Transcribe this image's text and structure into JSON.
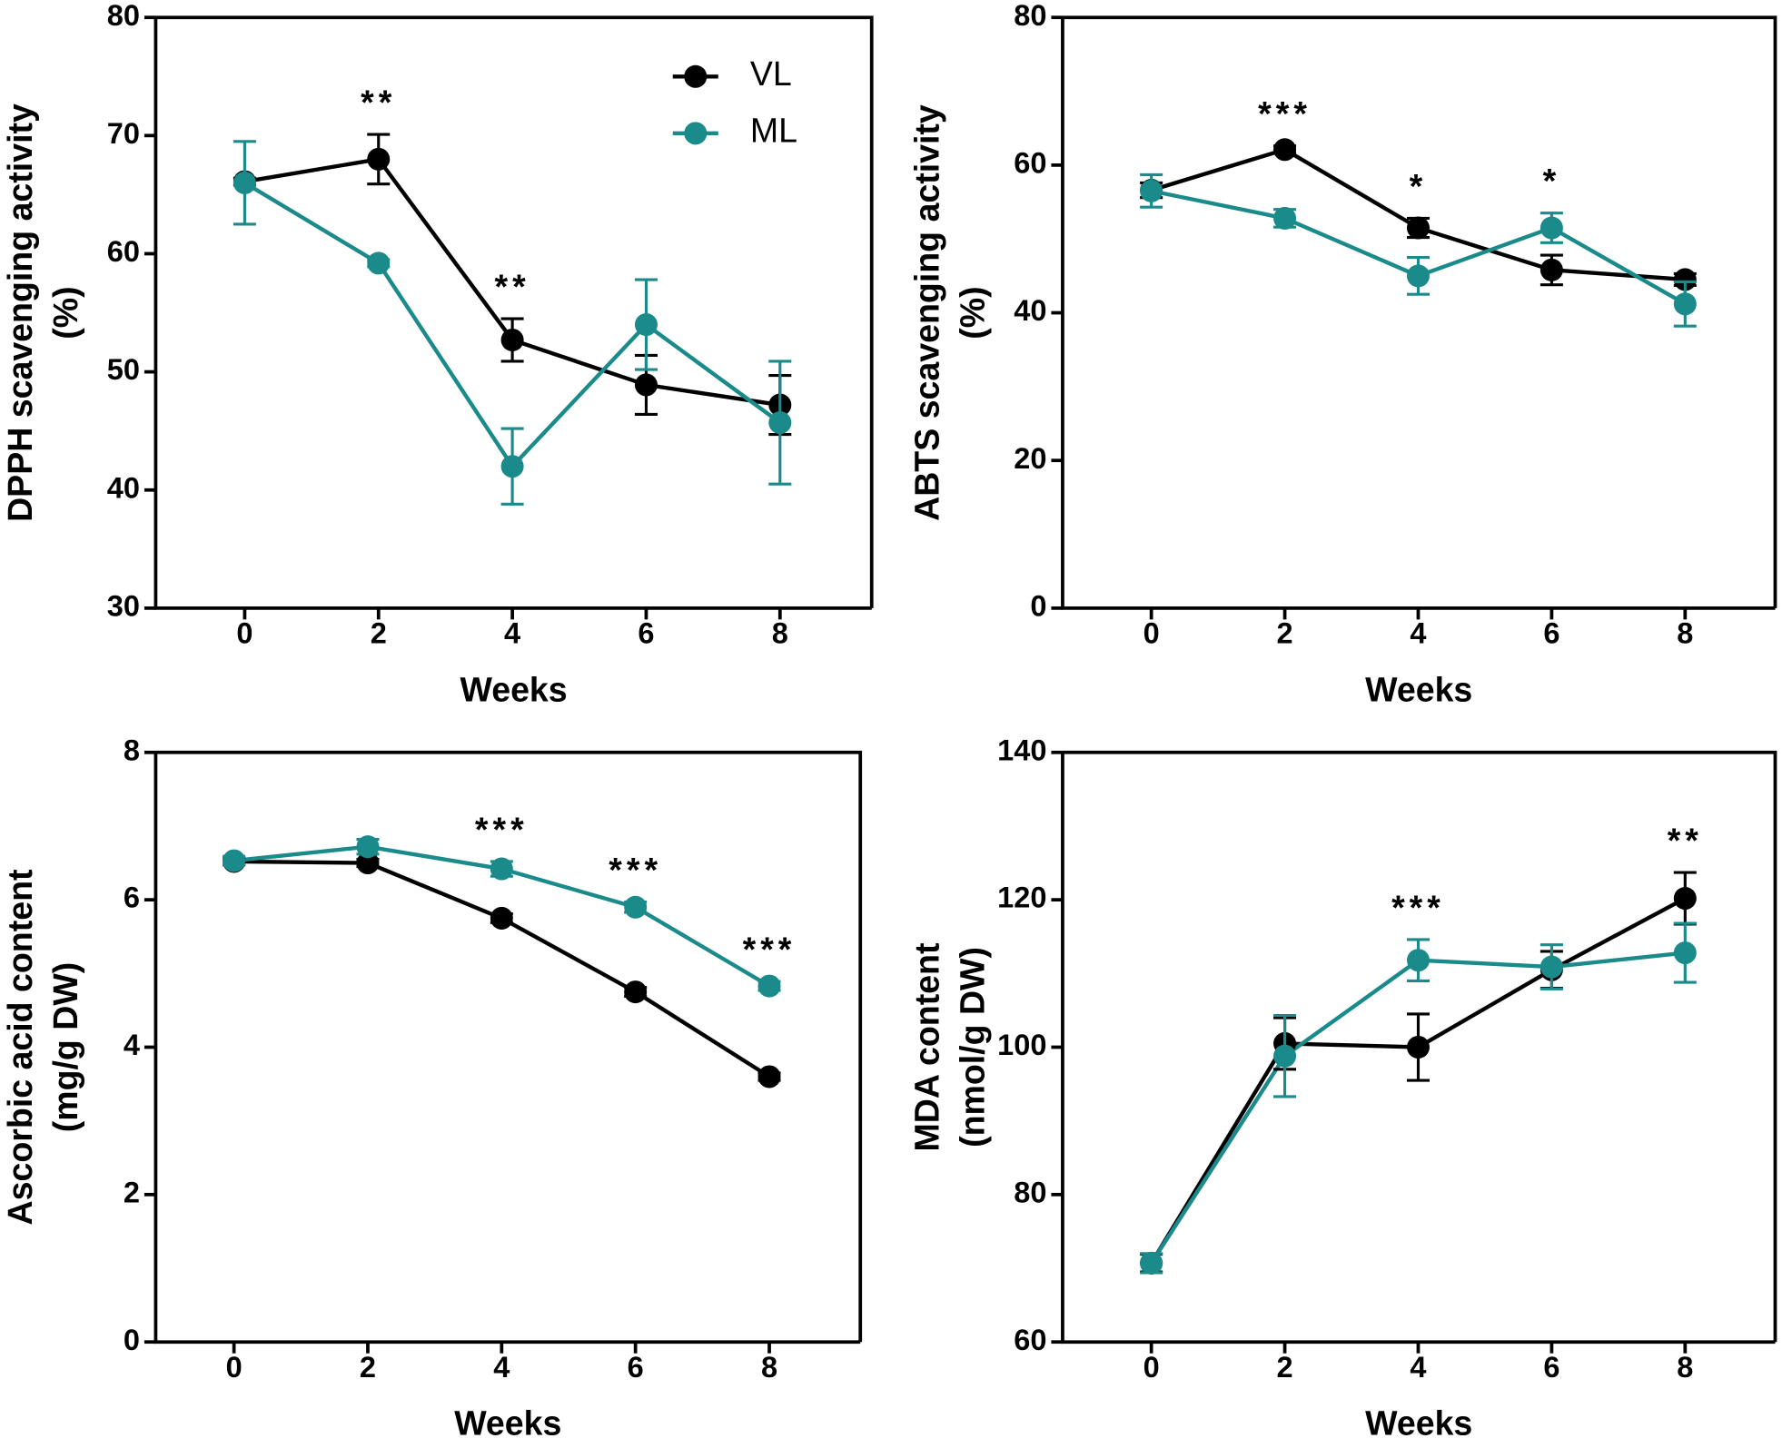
{
  "chart_data": [
    {
      "type": "line",
      "xlabel": "Weeks",
      "ylabel": [
        "DPPH scavenging activity",
        "(%)"
      ],
      "x": [
        0,
        2,
        4,
        6,
        8
      ],
      "xlim": [
        -1.33,
        9.37
      ],
      "xticks": [
        0,
        2,
        4,
        6,
        8
      ],
      "ylim": [
        30,
        80
      ],
      "yticks": [
        30,
        40,
        50,
        60,
        70,
        80
      ],
      "legend": "upper right",
      "series": [
        {
          "name": "VL",
          "color": "#000000",
          "values": [
            66.1,
            68,
            52.7,
            48.9,
            47.2
          ],
          "errors": [
            0.3,
            2.1,
            1.8,
            2.5,
            2.5
          ]
        },
        {
          "name": "ML",
          "color": "#1b8a8a",
          "values": [
            66,
            59.2,
            42,
            54,
            45.7
          ],
          "errors": [
            3.5,
            0.3,
            3.2,
            3.8,
            5.2
          ]
        }
      ],
      "annotations": [
        {
          "x": 2,
          "text": "**"
        },
        {
          "x": 4,
          "text": "**"
        }
      ]
    },
    {
      "type": "line",
      "xlabel": "Weeks",
      "ylabel": [
        "ABTS scavenging activity",
        "(%)"
      ],
      "x": [
        0,
        2,
        4,
        6,
        8
      ],
      "xlim": [
        -1.33,
        9.35
      ],
      "xticks": [
        0,
        2,
        4,
        6,
        8
      ],
      "ylim": [
        0,
        80
      ],
      "yticks": [
        0,
        20,
        40,
        60,
        80
      ],
      "series": [
        {
          "color": "#000000",
          "values": [
            56.6,
            62.1,
            51.5,
            45.8,
            44.5
          ],
          "errors": [
            1,
            0.5,
            1.3,
            2,
            0.8
          ]
        },
        {
          "color": "#1b8a8a",
          "values": [
            56.5,
            52.8,
            45,
            51.5,
            41.2
          ],
          "errors": [
            2.2,
            1.2,
            2.5,
            2,
            3
          ]
        }
      ],
      "annotations": [
        {
          "x": 2,
          "text": "***"
        },
        {
          "x": 4,
          "text": "*"
        },
        {
          "x": 6,
          "text": "*"
        }
      ]
    },
    {
      "type": "line",
      "xlabel": "Weeks",
      "ylabel": [
        "Ascorbic acid content",
        "(mg/g DW)"
      ],
      "x": [
        0,
        2,
        4,
        6,
        8
      ],
      "xlim": [
        -1.17,
        9.36
      ],
      "xticks": [
        0,
        2,
        4,
        6,
        8
      ],
      "ylim": [
        0,
        8
      ],
      "yticks": [
        0,
        2,
        4,
        6,
        8
      ],
      "series": [
        {
          "color": "#000000",
          "values": [
            6.52,
            6.5,
            5.75,
            4.75,
            3.6
          ],
          "errors": [
            0.05,
            0.05,
            0.06,
            0.06,
            0.05
          ]
        },
        {
          "color": "#1b8a8a",
          "values": [
            6.53,
            6.72,
            6.42,
            5.9,
            4.83
          ],
          "errors": [
            0.06,
            0.1,
            0.1,
            0.07,
            0.06
          ]
        }
      ],
      "annotations": [
        {
          "x": 4,
          "text": "***"
        },
        {
          "x": 6,
          "text": "***"
        },
        {
          "x": 8,
          "text": "***"
        }
      ]
    },
    {
      "type": "line",
      "xlabel": "Weeks",
      "ylabel": [
        "MDA content",
        "(nmol/g DW)"
      ],
      "x": [
        0,
        2,
        4,
        6,
        8
      ],
      "xlim": [
        -1.33,
        9.35
      ],
      "xticks": [
        0,
        2,
        4,
        6,
        8
      ],
      "ylim": [
        60,
        140
      ],
      "yticks": [
        60,
        80,
        100,
        120,
        140
      ],
      "series": [
        {
          "color": "#000000",
          "values": [
            70.7,
            100.5,
            100,
            110.5,
            120.2
          ],
          "errors": [
            1.2,
            3.5,
            4.5,
            2.5,
            3.5
          ]
        },
        {
          "color": "#1b8a8a",
          "values": [
            70.7,
            98.8,
            111.8,
            110.9,
            112.8
          ],
          "errors": [
            1.3,
            5.5,
            2.8,
            3,
            4
          ]
        }
      ],
      "annotations": [
        {
          "x": 4,
          "text": "***"
        },
        {
          "x": 8,
          "text": "**"
        }
      ]
    }
  ]
}
